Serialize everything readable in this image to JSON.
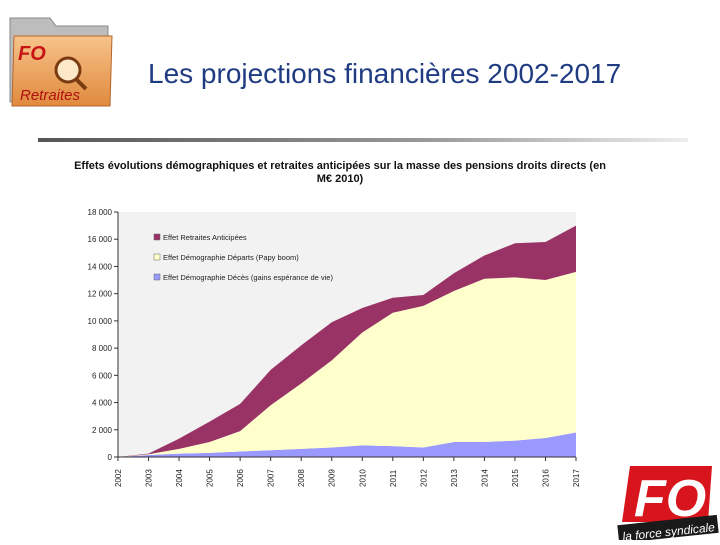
{
  "slide": {
    "title": "Les projections financières 2002-2017"
  },
  "logo_folder": {
    "fo_text": "FO",
    "label": "Retraites"
  },
  "logo_fo": {
    "text": "FO",
    "tagline": "la force syndicale"
  },
  "chart_data": {
    "type": "area",
    "stacked": true,
    "title": "Effets évolutions démographiques et retraites anticipées sur la masse des pensions droits directs (en M€ 2010)",
    "x": [
      "2002",
      "2003",
      "2004",
      "2005",
      "2006",
      "2007",
      "2008",
      "2009",
      "2010",
      "2011",
      "2012",
      "2013",
      "2014",
      "2015",
      "2016",
      "2017"
    ],
    "ylim": [
      0,
      18000
    ],
    "yticks": [
      0,
      2000,
      4000,
      6000,
      8000,
      10000,
      12000,
      14000,
      16000,
      18000
    ],
    "ytick_labels": [
      "0",
      "2 000",
      "4 000",
      "6 000",
      "8 000",
      "10 000",
      "12 000",
      "14 000",
      "16 000",
      "18 000"
    ],
    "grid": false,
    "legend_position": "top-left",
    "series": [
      {
        "name": "Effet Démographie Décès (gains espérance de vie)",
        "color": "#9999ff",
        "values": [
          0,
          150,
          250,
          300,
          400,
          500,
          600,
          700,
          850,
          800,
          700,
          1100,
          1100,
          1200,
          1400,
          1800
        ]
      },
      {
        "name": "Effet Démographie Départs (Papy boom)",
        "color": "#ffffcc",
        "values": [
          0,
          50,
          350,
          800,
          1500,
          3300,
          4800,
          6400,
          8300,
          9800,
          10400,
          11100,
          12000,
          12000,
          11600,
          11800
        ]
      },
      {
        "name": "Effet Retraites Anticipées",
        "color": "#993366",
        "values": [
          0,
          50,
          750,
          1500,
          2000,
          2600,
          2800,
          2800,
          1800,
          1100,
          800,
          1300,
          1700,
          2500,
          2800,
          3400
        ]
      }
    ]
  },
  "colors": {
    "title": "#1f3b82",
    "plot_bg": "#f2f2f2",
    "fo_red": "#d8151c"
  },
  "icons": [
    "folder-icon",
    "magnifier-icon"
  ]
}
